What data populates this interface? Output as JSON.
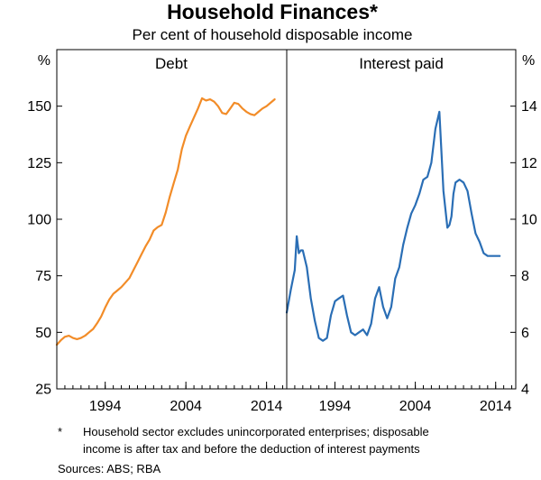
{
  "chart_data": {
    "type": "line",
    "title": "Household Finances*",
    "subtitle": "Per cent of household disposable income",
    "left_axis": {
      "unit": "%",
      "range": [
        25,
        175
      ],
      "ticks": [
        {
          "value": 25,
          "label": "25"
        },
        {
          "value": 50,
          "label": "50"
        },
        {
          "value": 75,
          "label": "75"
        },
        {
          "value": 100,
          "label": "100"
        },
        {
          "value": 125,
          "label": "125"
        },
        {
          "value": 150,
          "label": "150"
        }
      ]
    },
    "right_axis": {
      "unit": "%",
      "range": [
        4,
        16
      ],
      "ticks": [
        {
          "value": 4,
          "label": "4"
        },
        {
          "value": 6,
          "label": "6"
        },
        {
          "value": 8,
          "label": "8"
        },
        {
          "value": 10,
          "label": "10"
        },
        {
          "value": 12,
          "label": "12"
        },
        {
          "value": 14,
          "label": "14"
        }
      ]
    },
    "panels": [
      {
        "name": "Debt",
        "axis": "left",
        "color": "#F28C28",
        "x_range": [
          1988,
          2016.5
        ],
        "x_ticks": [
          {
            "value": 1994,
            "label": "1994"
          },
          {
            "value": 2004,
            "label": "2004"
          },
          {
            "value": 2014,
            "label": "2014"
          }
        ],
        "series": {
          "name": "Debt",
          "x": [
            1988.0,
            1988.5,
            1989.0,
            1989.5,
            1990.0,
            1990.5,
            1991.0,
            1991.5,
            1992.0,
            1992.5,
            1993.0,
            1993.5,
            1994.0,
            1994.5,
            1995.0,
            1995.5,
            1996.0,
            1996.5,
            1997.0,
            1997.5,
            1998.0,
            1998.5,
            1999.0,
            1999.5,
            2000.0,
            2000.5,
            2001.0,
            2001.5,
            2002.0,
            2002.5,
            2003.0,
            2003.5,
            2004.0,
            2004.5,
            2005.0,
            2005.5,
            2006.0,
            2006.5,
            2007.0,
            2007.5,
            2008.0,
            2008.5,
            2009.0,
            2009.5,
            2010.0,
            2010.5,
            2011.0,
            2011.5,
            2012.0,
            2012.5,
            2013.0,
            2013.5,
            2014.0,
            2014.5,
            2015.0
          ],
          "values": [
            44.5,
            46.5,
            48,
            48.5,
            47.5,
            47,
            47.5,
            48.5,
            50,
            51.5,
            54,
            57,
            61,
            64.5,
            67,
            68.5,
            70,
            72,
            74,
            77.5,
            81,
            84.5,
            88,
            91,
            95,
            96.5,
            97.5,
            103,
            110,
            116,
            122,
            131,
            137,
            141,
            145,
            149,
            153.5,
            152.5,
            153,
            152,
            150,
            147,
            146.5,
            149,
            151.5,
            151,
            149,
            147.5,
            146.5,
            146,
            147.5,
            149,
            150,
            151.5,
            153
          ]
        }
      },
      {
        "name": "Interest paid",
        "axis": "right",
        "color": "#2A6EB5",
        "x_range": [
          1988,
          2016.5
        ],
        "x_ticks": [
          {
            "value": 1994,
            "label": "1994"
          },
          {
            "value": 2004,
            "label": "2004"
          },
          {
            "value": 2014,
            "label": "2014"
          }
        ],
        "series": {
          "name": "Interest paid",
          "x": [
            1988.0,
            1988.5,
            1989.0,
            1989.25,
            1989.5,
            1989.75,
            1990.0,
            1990.5,
            1991.0,
            1991.5,
            1992.0,
            1992.5,
            1993.0,
            1993.5,
            1994.0,
            1994.5,
            1995.0,
            1995.5,
            1996.0,
            1996.5,
            1997.0,
            1997.5,
            1998.0,
            1998.5,
            1999.0,
            1999.5,
            2000.0,
            2000.5,
            2001.0,
            2001.5,
            2002.0,
            2002.5,
            2003.0,
            2003.5,
            2004.0,
            2004.5,
            2005.0,
            2005.5,
            2006.0,
            2006.5,
            2007.0,
            2007.5,
            2008.0,
            2008.25,
            2008.5,
            2008.75,
            2009.0,
            2009.5,
            2010.0,
            2010.5,
            2011.0,
            2011.5,
            2012.0,
            2012.5,
            2013.0,
            2013.5,
            2014.0,
            2014.5
          ],
          "values": [
            6.7,
            7.5,
            8.2,
            9.4,
            8.8,
            8.9,
            8.9,
            8.3,
            7.2,
            6.4,
            5.8,
            5.7,
            5.8,
            6.6,
            7.1,
            7.2,
            7.3,
            6.6,
            6.0,
            5.9,
            6.0,
            6.1,
            5.9,
            6.3,
            7.2,
            7.6,
            6.9,
            6.5,
            6.9,
            7.9,
            8.3,
            9.1,
            9.7,
            10.2,
            10.5,
            10.9,
            11.4,
            11.5,
            12.0,
            13.2,
            13.8,
            11.0,
            9.7,
            9.8,
            10.1,
            10.9,
            11.3,
            11.4,
            11.3,
            11.0,
            10.2,
            9.5,
            9.2,
            8.8,
            8.7,
            8.7,
            8.7,
            8.7
          ]
        }
      }
    ],
    "footnote_marker": "*",
    "footnote_lines": [
      "Household sector excludes unincorporated enterprises; disposable",
      "income is after tax and before the deduction of interest payments"
    ],
    "sources": "Sources:  ABS; RBA"
  }
}
